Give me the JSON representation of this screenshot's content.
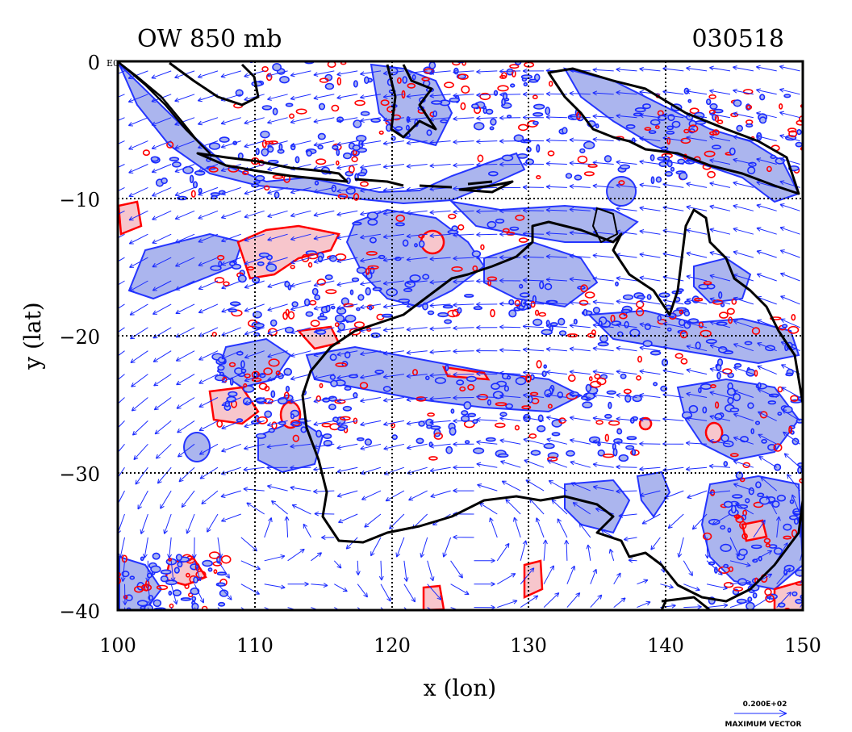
{
  "figure": {
    "title_left": "OW 850 mb",
    "title_right": "030518",
    "corner_label": "E0",
    "x_axis_label": "x (lon)",
    "y_axis_label": "y (lat)",
    "x_ticks": [
      "100",
      "110",
      "120",
      "130",
      "140",
      "150"
    ],
    "y_ticks": [
      "0",
      "−10",
      "−20",
      "−30",
      "−40"
    ],
    "vector_legend": {
      "magnitude": "0.200E+02",
      "caption": "MAXIMUM VECTOR"
    }
  },
  "colors": {
    "positive_contour": "#ff0000",
    "positive_fill": "#f7c6cc",
    "negative_contour": "#1a2bff",
    "negative_fill": "#a7b2ee",
    "wind_vectors": "#1a2bff",
    "coastline": "#000000"
  },
  "map_extent": {
    "lon_min": 100,
    "lon_max": 150,
    "lat_min": -40,
    "lat_max": 0,
    "gridline_lons": [
      110,
      120,
      130,
      140
    ],
    "gridline_lats": [
      -10,
      -20,
      -30
    ]
  },
  "wind_field": {
    "vortices": [
      {
        "lon": 109,
        "lat": -34,
        "sense": "anticyclone"
      },
      {
        "lon": 126,
        "lat": -35,
        "sense": "anticyclone"
      },
      {
        "lon": 146,
        "lat": -34,
        "sense": "anticyclone"
      }
    ],
    "background_flow": "easterly"
  }
}
